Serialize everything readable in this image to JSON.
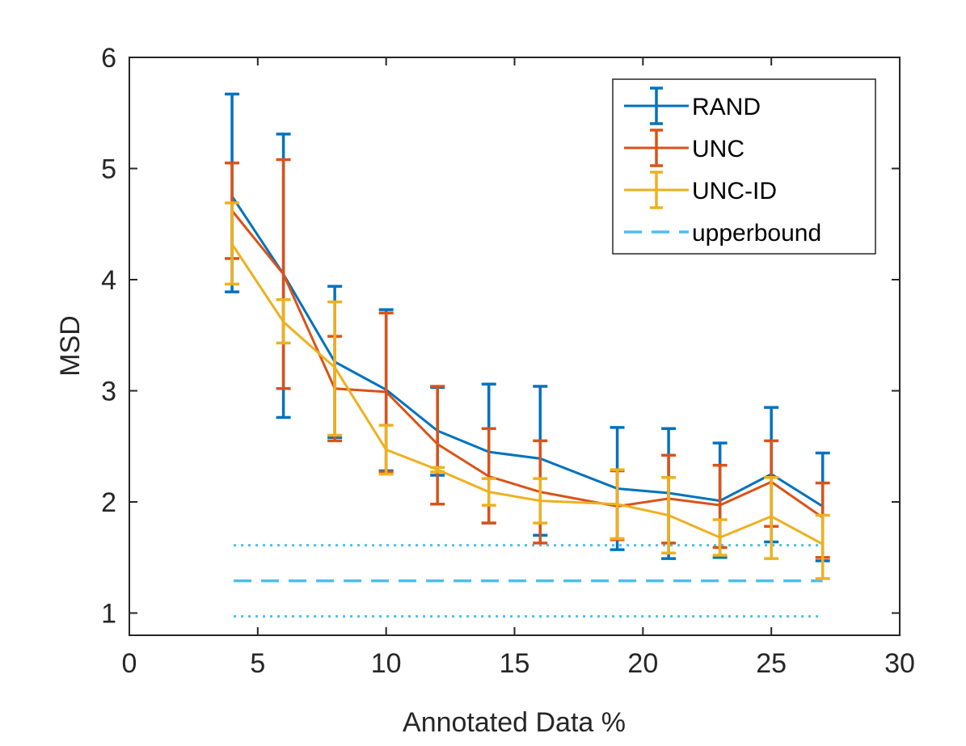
{
  "chart_data": {
    "type": "line",
    "title": "",
    "xlabel": "Annotated Data %",
    "ylabel": "MSD",
    "xlim": [
      0,
      30
    ],
    "ylim": [
      0.8,
      6
    ],
    "xticks": [
      0,
      5,
      10,
      15,
      20,
      25,
      30
    ],
    "xtick_labels": [
      "0",
      "5",
      "10",
      "15",
      "20",
      "25",
      "30"
    ],
    "yticks": [
      1,
      2,
      3,
      4,
      5,
      6
    ],
    "ytick_labels": [
      "1",
      "2",
      "3",
      "4",
      "5",
      "6"
    ],
    "grid": false,
    "legend_position": "top-right",
    "series": [
      {
        "name": "RAND",
        "color": "#0072BD",
        "x": [
          4,
          6,
          8,
          10,
          12,
          14,
          16,
          19,
          21,
          23,
          25,
          27
        ],
        "y": [
          4.75,
          4.05,
          3.26,
          3.01,
          2.64,
          2.45,
          2.39,
          2.12,
          2.08,
          2.01,
          2.25,
          1.96
        ],
        "upper": [
          5.67,
          5.31,
          3.94,
          3.73,
          3.03,
          3.06,
          3.04,
          2.67,
          2.66,
          2.53,
          2.85,
          2.44
        ],
        "lower": [
          3.89,
          2.76,
          2.58,
          2.28,
          2.24,
          1.81,
          1.7,
          1.57,
          1.49,
          1.5,
          1.64,
          1.47
        ]
      },
      {
        "name": "UNC",
        "color": "#D95319",
        "x": [
          4,
          6,
          8,
          10,
          12,
          14,
          16,
          19,
          21,
          23,
          25,
          27
        ],
        "y": [
          4.62,
          4.05,
          3.02,
          2.99,
          2.52,
          2.23,
          2.09,
          1.96,
          2.03,
          1.97,
          2.18,
          1.86
        ],
        "upper": [
          5.05,
          5.08,
          3.49,
          3.7,
          3.04,
          2.66,
          2.55,
          2.28,
          2.42,
          2.33,
          2.55,
          2.17
        ],
        "lower": [
          4.19,
          3.02,
          2.55,
          2.27,
          1.98,
          1.81,
          1.63,
          1.66,
          1.63,
          1.59,
          1.78,
          1.5
        ]
      },
      {
        "name": "UNC-ID",
        "color": "#EDB120",
        "x": [
          4,
          6,
          8,
          10,
          12,
          14,
          16,
          19,
          21,
          23,
          25,
          27
        ],
        "y": [
          4.32,
          3.62,
          3.21,
          2.47,
          2.29,
          2.09,
          2.01,
          1.98,
          1.88,
          1.68,
          1.87,
          1.62
        ],
        "upper": [
          4.69,
          3.82,
          3.8,
          2.69,
          2.31,
          2.21,
          2.21,
          2.29,
          2.22,
          1.84,
          2.22,
          1.88
        ],
        "lower": [
          3.96,
          3.43,
          2.6,
          2.25,
          2.27,
          1.97,
          1.81,
          1.67,
          1.54,
          1.52,
          1.49,
          1.31
        ]
      },
      {
        "name": "upperbound",
        "color": "#4DBEEE",
        "style": "dashed",
        "x": [
          4,
          27
        ],
        "y": [
          1.29,
          1.29
        ],
        "band_upper": 1.61,
        "band_lower": 0.97
      }
    ]
  }
}
